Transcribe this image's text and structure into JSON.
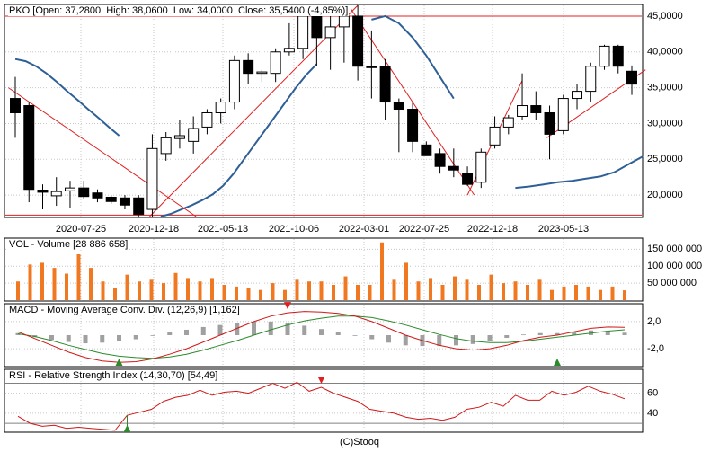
{
  "footer": "(C)Stooq",
  "colors": {
    "candle_up": "#ffffff",
    "candle_down": "#000000",
    "ma": "#2e5f96",
    "trend": "#e02020",
    "volume": "#f07820",
    "macd": "#d01818",
    "signal": "#2c8a2c",
    "histogram": "#a0a0a0",
    "arrow_up": "#2c8a2c",
    "arrow_down": "#e02020",
    "rsi": "#d01818",
    "bands": "#808080"
  },
  "chart_data": [
    {
      "type": "candlestick",
      "title": "PKO [Open: 37,2800  High: 38,0600  Low: 34,0000  Close: 35,5400 (-4,85%)]",
      "xticks": [
        "2020-07-25",
        "2020-12-18",
        "2021-05-13",
        "2021-10-06",
        "2022-03-01",
        "2022-07-25",
        "2022-12-18",
        "2023-05-13"
      ],
      "yticks": [
        "45,0000",
        "40,0000",
        "35,0000",
        "30,0000",
        "25,0000",
        "20,0000"
      ],
      "ylim": [
        17,
        46.5
      ],
      "candles": [
        {
          "o": 33.5,
          "h": 36.5,
          "l": 28.0,
          "c": 31.5
        },
        {
          "o": 32.5,
          "h": 33.0,
          "l": 19.0,
          "c": 20.8
        },
        {
          "o": 20.7,
          "h": 21.5,
          "l": 18.0,
          "c": 20.4
        },
        {
          "o": 19.9,
          "h": 22.5,
          "l": 18.5,
          "c": 20.5
        },
        {
          "o": 20.6,
          "h": 22.0,
          "l": 18.2,
          "c": 21.0
        },
        {
          "o": 21.0,
          "h": 22.0,
          "l": 19.5,
          "c": 19.8
        },
        {
          "o": 20.3,
          "h": 20.8,
          "l": 19.0,
          "c": 19.6
        },
        {
          "o": 19.7,
          "h": 20.0,
          "l": 18.8,
          "c": 19.1
        },
        {
          "o": 19.6,
          "h": 20.0,
          "l": 18.0,
          "c": 18.6
        },
        {
          "o": 19.6,
          "h": 20.0,
          "l": 16.8,
          "c": 17.3
        },
        {
          "o": 18.0,
          "h": 28.5,
          "l": 17.0,
          "c": 26.5
        },
        {
          "o": 25.8,
          "h": 28.8,
          "l": 24.8,
          "c": 28.0
        },
        {
          "o": 27.9,
          "h": 30.5,
          "l": 26.5,
          "c": 28.3
        },
        {
          "o": 27.5,
          "h": 31.0,
          "l": 25.8,
          "c": 29.3
        },
        {
          "o": 29.5,
          "h": 32.0,
          "l": 28.5,
          "c": 31.5
        },
        {
          "o": 31.5,
          "h": 33.5,
          "l": 30.0,
          "c": 33.0
        },
        {
          "o": 33.0,
          "h": 39.5,
          "l": 32.0,
          "c": 38.8
        },
        {
          "o": 38.8,
          "h": 39.8,
          "l": 35.5,
          "c": 37.0
        },
        {
          "o": 37.0,
          "h": 37.5,
          "l": 35.8,
          "c": 37.2
        },
        {
          "o": 37.0,
          "h": 40.5,
          "l": 35.8,
          "c": 40.0
        },
        {
          "o": 40.0,
          "h": 44.0,
          "l": 39.5,
          "c": 40.5
        },
        {
          "o": 40.5,
          "h": 46.0,
          "l": 39.0,
          "c": 45.0
        },
        {
          "o": 45.0,
          "h": 46.0,
          "l": 38.0,
          "c": 42.0
        },
        {
          "o": 42.0,
          "h": 45.5,
          "l": 37.5,
          "c": 43.5
        },
        {
          "o": 43.5,
          "h": 46.0,
          "l": 38.5,
          "c": 45.0
        },
        {
          "o": 45.0,
          "h": 46.5,
          "l": 36.0,
          "c": 38.0
        },
        {
          "o": 38.0,
          "h": 43.0,
          "l": 33.5,
          "c": 37.8
        },
        {
          "o": 38.0,
          "h": 39.0,
          "l": 30.5,
          "c": 33.0
        },
        {
          "o": 33.0,
          "h": 33.5,
          "l": 26.0,
          "c": 32.0
        },
        {
          "o": 32.0,
          "h": 33.0,
          "l": 26.0,
          "c": 27.5
        },
        {
          "o": 27.0,
          "h": 27.5,
          "l": 25.5,
          "c": 25.5
        },
        {
          "o": 25.8,
          "h": 26.5,
          "l": 23.0,
          "c": 24.0
        },
        {
          "o": 24.0,
          "h": 26.5,
          "l": 22.5,
          "c": 23.5
        },
        {
          "o": 23.0,
          "h": 24.0,
          "l": 21.3,
          "c": 21.5
        },
        {
          "o": 21.8,
          "h": 26.5,
          "l": 21.0,
          "c": 26.0
        },
        {
          "o": 27.0,
          "h": 31.0,
          "l": 26.5,
          "c": 29.5
        },
        {
          "o": 29.5,
          "h": 31.2,
          "l": 28.5,
          "c": 30.8
        },
        {
          "o": 31.0,
          "h": 37.0,
          "l": 30.5,
          "c": 32.5
        },
        {
          "o": 32.5,
          "h": 34.5,
          "l": 30.5,
          "c": 31.5
        },
        {
          "o": 31.5,
          "h": 32.5,
          "l": 25.0,
          "c": 28.5
        },
        {
          "o": 29.0,
          "h": 34.0,
          "l": 28.5,
          "c": 33.5
        },
        {
          "o": 33.5,
          "h": 35.5,
          "l": 32.0,
          "c": 34.5
        },
        {
          "o": 34.5,
          "h": 38.5,
          "l": 33.0,
          "c": 38.0
        },
        {
          "o": 38.0,
          "h": 41.0,
          "l": 37.5,
          "c": 40.8
        },
        {
          "o": 40.8,
          "h": 41.0,
          "l": 37.0,
          "c": 38.0
        },
        {
          "o": 37.3,
          "h": 38.1,
          "l": 34.0,
          "c": 35.5
        }
      ],
      "ma_series": [
        {
          "values": [
            39.0,
            38.7,
            38.0,
            37.0,
            35.8,
            34.5,
            33.3,
            32.0,
            30.8,
            29.5,
            28.3,
            null,
            null,
            null,
            17.0,
            17.4,
            18.0,
            18.6,
            19.3,
            20.1,
            21.3,
            23.0,
            25.0,
            27.0,
            29.0,
            31.0,
            33.0,
            35.0,
            36.8,
            38.3
          ]
        },
        {
          "values": [
            null,
            null,
            null,
            null,
            null,
            null,
            null,
            null,
            null,
            null,
            null,
            null,
            null,
            null,
            null,
            null,
            null,
            null,
            null,
            null,
            null,
            null,
            null,
            null,
            null,
            null,
            44.5,
            45.0,
            44.0,
            42.0,
            39.5,
            36.5,
            33.5,
            null,
            null,
            null,
            null,
            null,
            null,
            null,
            null,
            null,
            null,
            null,
            null,
            null
          ]
        }
      ],
      "levels": [
        45.0,
        25.6,
        17.2
      ],
      "trend_lines": [
        {
          "from": [
            -0.5,
            35.0
          ],
          "to": [
            13.2,
            17.0
          ]
        },
        {
          "from": [
            9.8,
            17.0
          ],
          "to": [
            25.0,
            46.5
          ]
        },
        {
          "from": [
            24.5,
            46.0
          ],
          "to": [
            33.5,
            20.0
          ]
        },
        {
          "from": [
            33.0,
            20.0
          ],
          "to": [
            37.0,
            36.0
          ]
        },
        {
          "from": [
            38.8,
            28.0
          ],
          "to": [
            46.0,
            37.5
          ]
        }
      ]
    },
    {
      "type": "bar",
      "title": "VOL - Volume [28 886 658]",
      "yticks": [
        "150 000 000",
        "100 000 000",
        "50 000 000"
      ],
      "ylim": [
        0,
        180000000
      ],
      "values": [
        55000000,
        105000000,
        110000000,
        95000000,
        78000000,
        135000000,
        95000000,
        55000000,
        35000000,
        75000000,
        55000000,
        60000000,
        50000000,
        80000000,
        65000000,
        55000000,
        65000000,
        45000000,
        40000000,
        35000000,
        30000000,
        50000000,
        30000000,
        60000000,
        55000000,
        55000000,
        45000000,
        70000000,
        45000000,
        45000000,
        170000000,
        60000000,
        110000000,
        55000000,
        65000000,
        45000000,
        70000000,
        60000000,
        45000000,
        75000000,
        50000000,
        55000000,
        45000000,
        60000000,
        30000000,
        40000000,
        45000000,
        40000000,
        30000000,
        40000000,
        28886658
      ]
    },
    {
      "type": "line",
      "title": "MACD - Moving Average Conv. Div. (12,26,9) [1,162]",
      "yticks": [
        "2,0",
        "-2,0"
      ],
      "ylim": [
        -4.5,
        4.5
      ],
      "macd": [
        0.5,
        -0.5,
        -1.5,
        -2.5,
        -3.3,
        -3.8,
        -4.0,
        -3.9,
        -3.5,
        -2.8,
        -2.0,
        -1.0,
        0.0,
        1.0,
        2.0,
        2.8,
        3.3,
        3.5,
        3.4,
        3.2,
        2.8,
        2.0,
        1.0,
        0.0,
        -0.8,
        -1.5,
        -2.0,
        -2.2,
        -2.0,
        -1.5,
        -0.8,
        -0.3,
        0.0,
        0.5,
        1.0,
        1.2,
        1.162
      ],
      "signal": [
        0.2,
        -0.2,
        -0.8,
        -1.5,
        -2.1,
        -2.7,
        -3.1,
        -3.3,
        -3.4,
        -3.2,
        -2.8,
        -2.2,
        -1.5,
        -0.8,
        0.0,
        0.8,
        1.5,
        2.1,
        2.5,
        2.8,
        2.8,
        2.6,
        2.1,
        1.5,
        0.8,
        0.1,
        -0.5,
        -0.9,
        -1.1,
        -1.1,
        -0.9,
        -0.6,
        -0.3,
        0.0,
        0.3,
        0.6,
        0.8
      ],
      "signal_arrows": [
        {
          "i": 6,
          "dir": "up"
        },
        {
          "i": 16,
          "dir": "down"
        },
        {
          "i": 32,
          "dir": "up"
        }
      ]
    },
    {
      "type": "line",
      "title": "RSI - Relative Strength Index (14,30,70) [54,49]",
      "yticks": [
        "60",
        "40"
      ],
      "ylim": [
        22,
        83
      ],
      "bands": [
        70,
        30
      ],
      "values": [
        37,
        30,
        27,
        28,
        25,
        26,
        25,
        24,
        23,
        38,
        41,
        44,
        52,
        56,
        58,
        63,
        58,
        61,
        62,
        60,
        65,
        70,
        65,
        71,
        62,
        66,
        60,
        56,
        52,
        44,
        42,
        40,
        36,
        34,
        35,
        33,
        36,
        44,
        46,
        51,
        47,
        58,
        53,
        53,
        62,
        58,
        61,
        67,
        62,
        59,
        54.49
      ],
      "signal_arrows": [
        {
          "i": 9,
          "dir": "up"
        },
        {
          "i": 25,
          "dir": "down"
        }
      ]
    }
  ]
}
